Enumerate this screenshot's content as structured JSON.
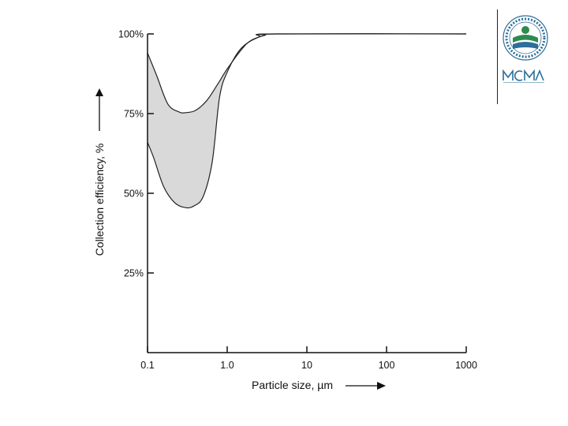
{
  "chart_data": {
    "type": "area",
    "xscale": "log",
    "xlim": [
      0.1,
      1000
    ],
    "ylim": [
      0,
      100
    ],
    "xticks": [
      {
        "value": 0.1,
        "label": "0.1"
      },
      {
        "value": 1,
        "label": "1.0"
      },
      {
        "value": 10,
        "label": "10"
      },
      {
        "value": 100,
        "label": "100"
      },
      {
        "value": 1000,
        "label": "1000"
      }
    ],
    "yticks": [
      {
        "value": 25,
        "label": "25%"
      },
      {
        "value": 50,
        "label": "50%"
      },
      {
        "value": 75,
        "label": "75%"
      },
      {
        "value": 100,
        "label": "100%"
      }
    ],
    "xlabel": "Particle size, µm",
    "ylabel": "Collection efficiency, %",
    "grid": false,
    "band": {
      "upper": [
        [
          0.1,
          94
        ],
        [
          0.13,
          87
        ],
        [
          0.18,
          78
        ],
        [
          0.25,
          75.5
        ],
        [
          0.3,
          75.3
        ],
        [
          0.4,
          76
        ],
        [
          0.55,
          79
        ],
        [
          0.75,
          84
        ],
        [
          1.0,
          89
        ],
        [
          1.5,
          95
        ],
        [
          2.0,
          98
        ],
        [
          3.0,
          99.6
        ],
        [
          4.0,
          100
        ],
        [
          1000,
          100
        ]
      ],
      "lower": [
        [
          0.1,
          66
        ],
        [
          0.12,
          61
        ],
        [
          0.16,
          52
        ],
        [
          0.22,
          47
        ],
        [
          0.3,
          45.5
        ],
        [
          0.38,
          46
        ],
        [
          0.5,
          49
        ],
        [
          0.65,
          60
        ],
        [
          0.8,
          80
        ],
        [
          1.0,
          88
        ],
        [
          1.5,
          95.5
        ],
        [
          2.5,
          99
        ],
        [
          4.0,
          100
        ],
        [
          1000,
          100
        ]
      ],
      "fill": "#d9d9d9",
      "stroke": "#222222"
    },
    "logos": [
      "epa-seal",
      "mcma-logo"
    ]
  }
}
